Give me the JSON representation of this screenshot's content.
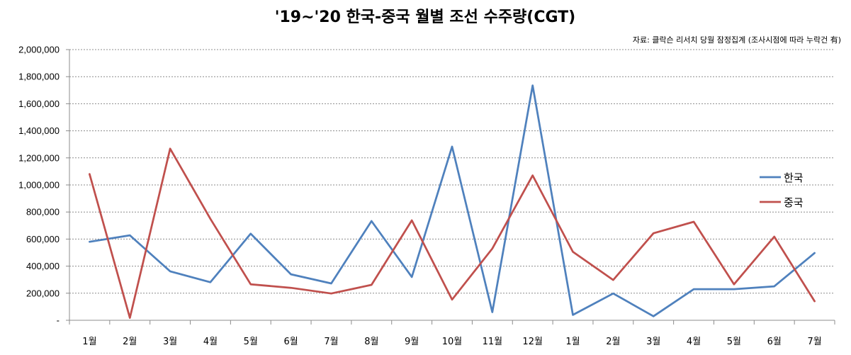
{
  "chart_data": {
    "type": "line",
    "title": "'19~'20 한국-중국 월별 조선 수주량(CGT)",
    "source_note": "자료: 클락슨 리서치 당월 잠정집계 (조사시점에 따라 누락건 有)",
    "categories": [
      "1월",
      "2월",
      "3월",
      "4월",
      "5월",
      "6월",
      "7월",
      "8월",
      "9월",
      "10월",
      "11월",
      "12월",
      "1월",
      "2월",
      "3월",
      "4월",
      "5월",
      "6월",
      "7월"
    ],
    "y_ticks": [
      "-",
      "200,000",
      "400,000",
      "600,000",
      "800,000",
      "1,000,000",
      "1,200,000",
      "1,400,000",
      "1,600,000",
      "1,800,000",
      "2,000,000"
    ],
    "ylim": [
      0,
      2000000
    ],
    "grid": true,
    "legend_position": "right",
    "series": [
      {
        "name": "한국",
        "color": "#4F81BD",
        "values": [
          580000,
          628000,
          362000,
          281000,
          640000,
          340000,
          272000,
          733000,
          320000,
          1283000,
          60000,
          1735000,
          40000,
          198000,
          30000,
          230000,
          230000,
          251000,
          497000
        ]
      },
      {
        "name": "중국",
        "color": "#C0504D",
        "values": [
          1080000,
          18000,
          1268000,
          750000,
          266000,
          240000,
          198000,
          262000,
          738000,
          153000,
          530000,
          1070000,
          506000,
          298000,
          643000,
          728000,
          266000,
          618000,
          141000
        ]
      }
    ]
  }
}
